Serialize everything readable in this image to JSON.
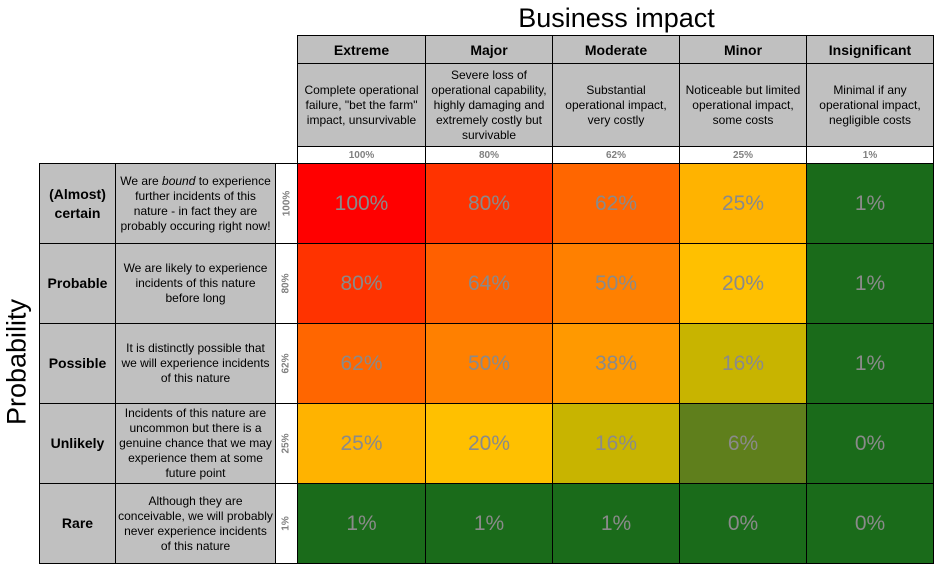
{
  "title_top": "Business impact",
  "title_left": "Probability",
  "columns": [
    {
      "label": "Extreme",
      "desc": "Complete operational failure, \"bet the farm\" impact, unsurvivable",
      "pct": "100%"
    },
    {
      "label": "Major",
      "desc": "Severe loss of operational capability, highly damaging and extremely costly but survivable",
      "pct": "80%"
    },
    {
      "label": "Moderate",
      "desc": "Substantial operational impact, very costly",
      "pct": "62%"
    },
    {
      "label": "Minor",
      "desc": "Noticeable but limited operational impact, some costs",
      "pct": "25%"
    },
    {
      "label": "Insignificant",
      "desc": "Minimal if any operational impact, negligible costs",
      "pct": "1%"
    }
  ],
  "rows": [
    {
      "label": "(Almost) certain",
      "desc_parts": [
        "We are ",
        "bound",
        " to experience further incidents of this nature - in fact they are probably occuring right now!"
      ],
      "pct": "100%"
    },
    {
      "label": "Probable",
      "desc_parts": [
        "We are likely to experience incidents of this nature before long"
      ],
      "pct": "80%"
    },
    {
      "label": "Possible",
      "desc_parts": [
        "It is distinctly possible that we will experience incidents of this nature"
      ],
      "pct": "62%"
    },
    {
      "label": "Unlikely",
      "desc_parts": [
        "Incidents of this nature are uncommon but there is a genuine chance that we may experience them at some future point"
      ],
      "pct": "25%"
    },
    {
      "label": "Rare",
      "desc_parts": [
        "Although they are conceivable, we will probably never experience incidents of this nature"
      ],
      "pct": "1%"
    }
  ],
  "matrix": [
    [
      {
        "v": "100%",
        "c": "#ff0000"
      },
      {
        "v": "80%",
        "c": "#ff3300"
      },
      {
        "v": "62%",
        "c": "#ff6600"
      },
      {
        "v": "25%",
        "c": "#ffb300"
      },
      {
        "v": "1%",
        "c": "#1a6b1a"
      }
    ],
    [
      {
        "v": "80%",
        "c": "#ff3300"
      },
      {
        "v": "64%",
        "c": "#ff6000"
      },
      {
        "v": "50%",
        "c": "#ff8000"
      },
      {
        "v": "20%",
        "c": "#ffc000"
      },
      {
        "v": "1%",
        "c": "#1a6b1a"
      }
    ],
    [
      {
        "v": "62%",
        "c": "#ff6600"
      },
      {
        "v": "50%",
        "c": "#ff8000"
      },
      {
        "v": "38%",
        "c": "#ff9900"
      },
      {
        "v": "16%",
        "c": "#c8b400"
      },
      {
        "v": "1%",
        "c": "#1a6b1a"
      }
    ],
    [
      {
        "v": "25%",
        "c": "#ffb300"
      },
      {
        "v": "20%",
        "c": "#ffc000"
      },
      {
        "v": "16%",
        "c": "#c8b400"
      },
      {
        "v": "6%",
        "c": "#5f7f1c"
      },
      {
        "v": "0%",
        "c": "#1a6b1a"
      }
    ],
    [
      {
        "v": "1%",
        "c": "#1a6b1a"
      },
      {
        "v": "1%",
        "c": "#1a6b1a"
      },
      {
        "v": "1%",
        "c": "#1a6b1a"
      },
      {
        "v": "0%",
        "c": "#1a6b1a"
      },
      {
        "v": "0%",
        "c": "#1a6b1a"
      }
    ]
  ]
}
